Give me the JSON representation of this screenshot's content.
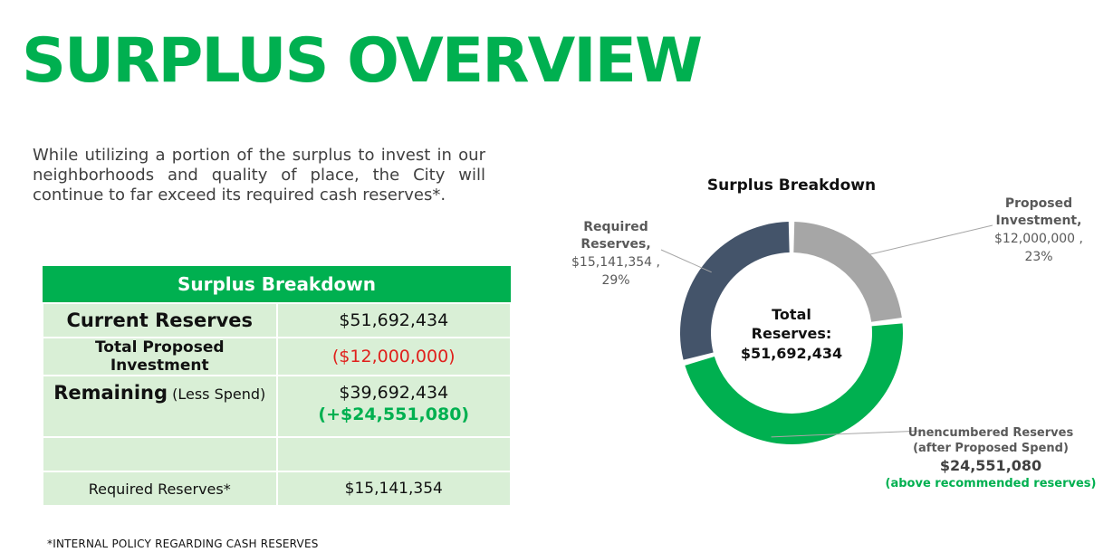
{
  "title": "SURPLUS OVERVIEW",
  "intro": "While utilizing a portion of the surplus to invest in our neighborhoods and quality of place, the City will continue to far exceed its required cash reserves*.",
  "table": {
    "header": "Surplus Breakdown",
    "rows": [
      {
        "label": "Current Reserves",
        "value": "$51,692,434"
      },
      {
        "label": "Total Proposed Investment",
        "value": "($12,000,000)"
      },
      {
        "label": "Remaining",
        "label_suffix": "(Less Spend)",
        "value": "$39,692,434",
        "value2": "(+$24,551,080)"
      },
      {
        "label": "",
        "value": ""
      },
      {
        "label": "Required Reserves*",
        "value": "$15,141,354"
      }
    ]
  },
  "footnote": "*INTERNAL POLICY REGARDING CASH RESERVES",
  "chart_data": {
    "type": "pie",
    "variant": "donut",
    "title": "Surplus Breakdown",
    "center_label": [
      "Total",
      "Reserves:",
      "$51,692,434"
    ],
    "slices": [
      {
        "key": "proposed",
        "value": 12000000,
        "percent": 23,
        "color": "#a6a6a6",
        "label_lines": [
          "Proposed",
          "Investment,",
          "$12,000,000 ,",
          "23%"
        ]
      },
      {
        "key": "unencumbered",
        "value": 24551080,
        "percent": 48,
        "color": "#00b050",
        "label_lines": [
          "Unencumbered Reserves",
          "(after Proposed Spend)",
          "$24,551,080",
          "(above recommended reserves)"
        ]
      },
      {
        "key": "required",
        "value": 15141354,
        "percent": 29,
        "color": "#44546a",
        "label_lines": [
          "Required",
          "Reserves,",
          "$15,141,354 ,",
          "29%"
        ]
      }
    ]
  }
}
